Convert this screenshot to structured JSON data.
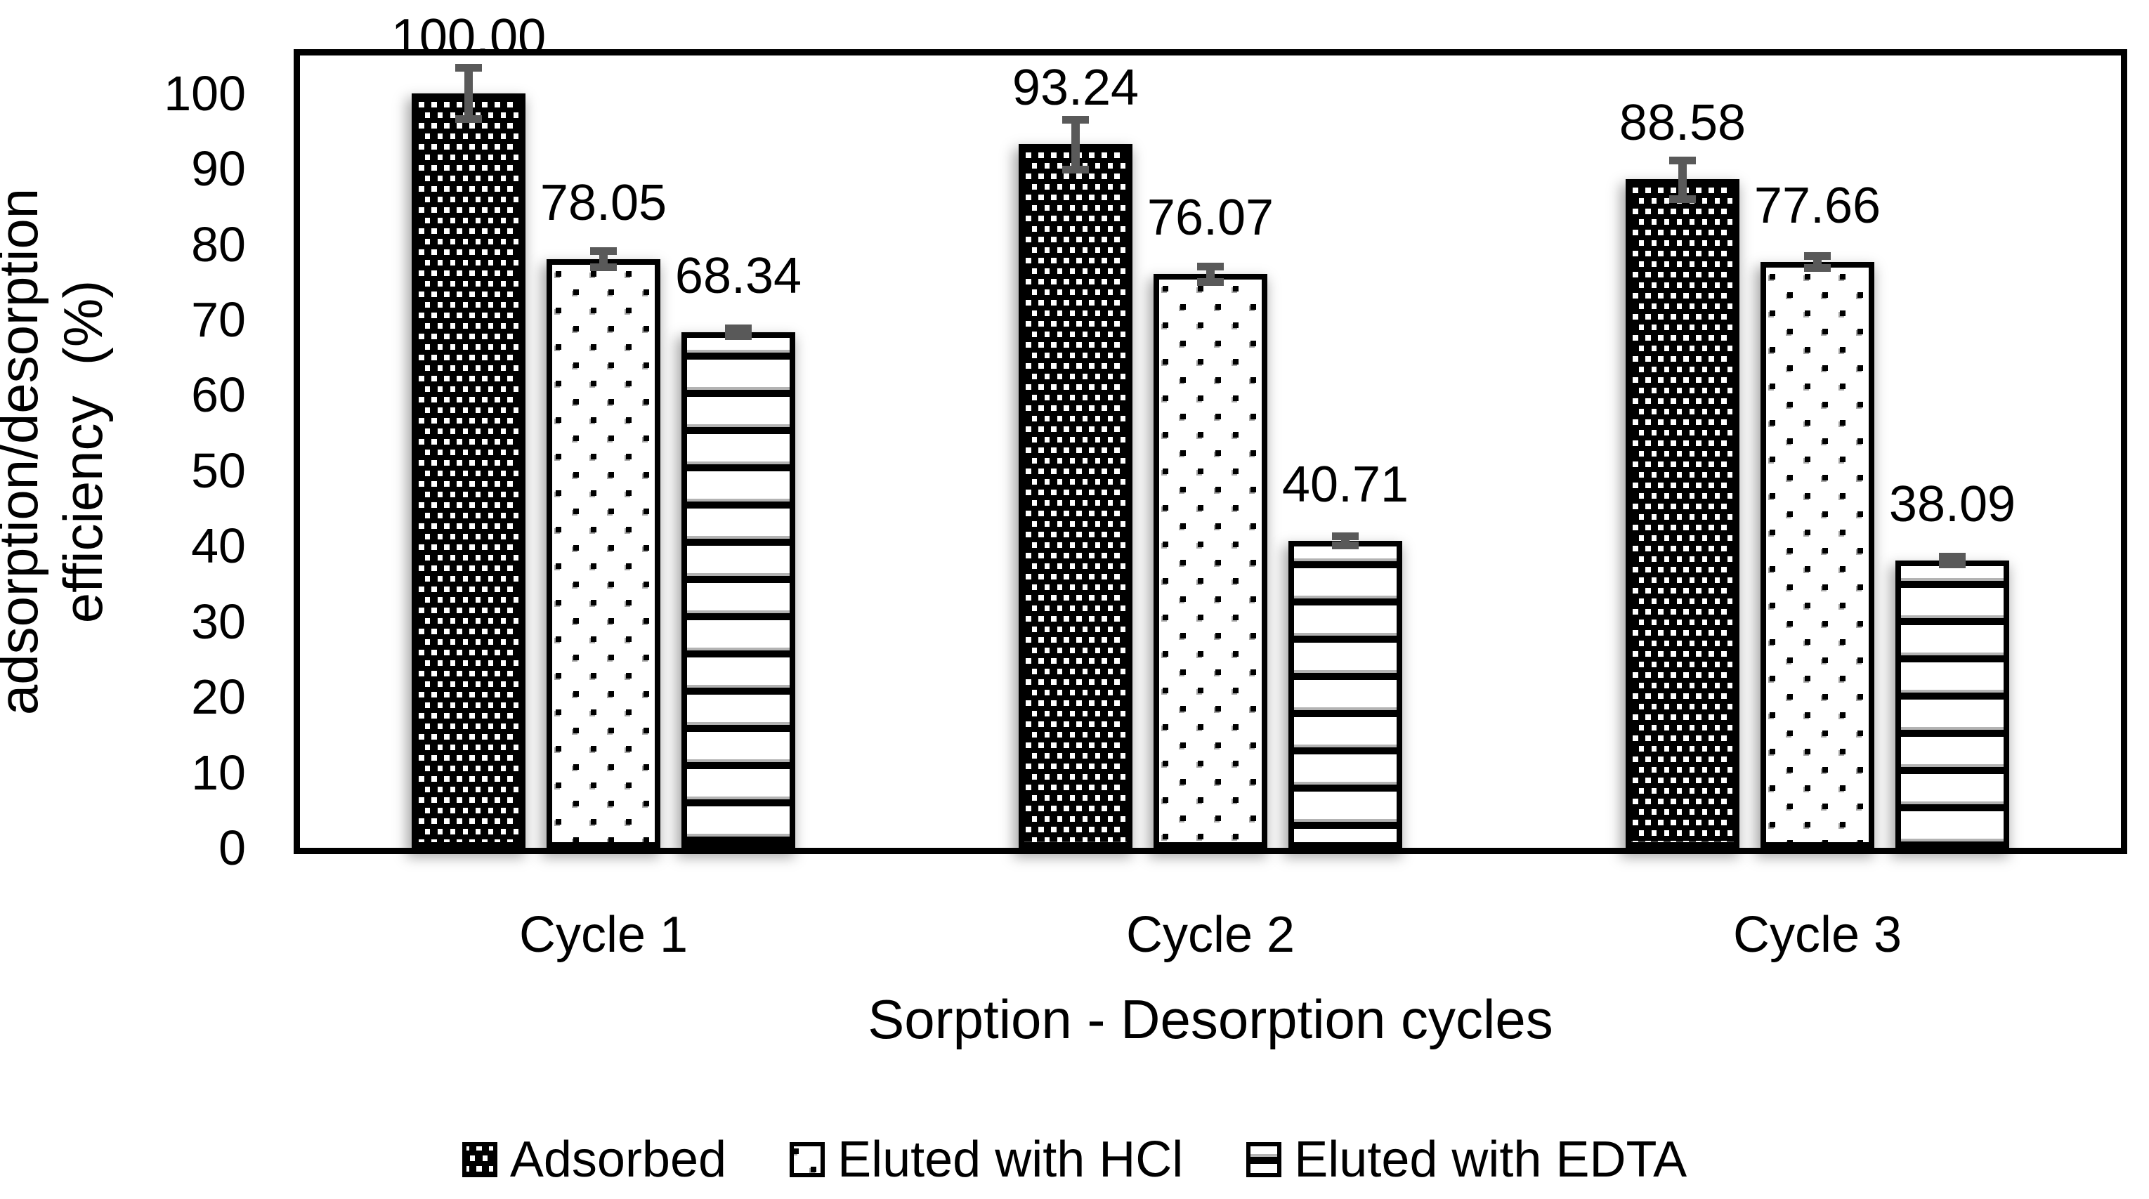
{
  "figure": {
    "background": "#ffffff",
    "text_color": "#000000",
    "axis_color": "#000000",
    "error_bar_color": "#595959"
  },
  "chart_data": {
    "type": "bar",
    "title": "",
    "categories": [
      "Cycle 1",
      "Cycle 2",
      "Cycle 3"
    ],
    "series": [
      {
        "name": "Adsorbed",
        "pattern": "dense-white-dots-on-black",
        "values": [
          100.0,
          93.24,
          88.58
        ],
        "labels": [
          "100.00",
          "93.24",
          "88.58"
        ],
        "errors": [
          3.4,
          3.3,
          2.6
        ]
      },
      {
        "name": "Eluted with HCl",
        "pattern": "sparse-black-dots",
        "values": [
          78.05,
          76.07,
          77.66
        ],
        "labels": [
          "78.05",
          "76.07",
          "77.66"
        ],
        "errors": [
          1.1,
          1.0,
          0.8
        ]
      },
      {
        "name": "Eluted with EDTA",
        "pattern": "black-horizontal-stripes",
        "values": [
          68.34,
          40.71,
          38.09
        ],
        "labels": [
          "68.34",
          "40.71",
          "38.09"
        ],
        "errors": [
          0.5,
          0.6,
          0.5
        ]
      }
    ],
    "xlabel": "Sorption - Desorption cycles",
    "ylabel_lines": [
      "adsorption/desorption",
      "efficiency  (%)"
    ],
    "y_ticks": [
      0,
      10,
      20,
      30,
      40,
      50,
      60,
      70,
      80,
      90,
      100
    ],
    "ylim": [
      0,
      105
    ],
    "grid": false,
    "legend_position": "bottom",
    "error_bars": true
  }
}
